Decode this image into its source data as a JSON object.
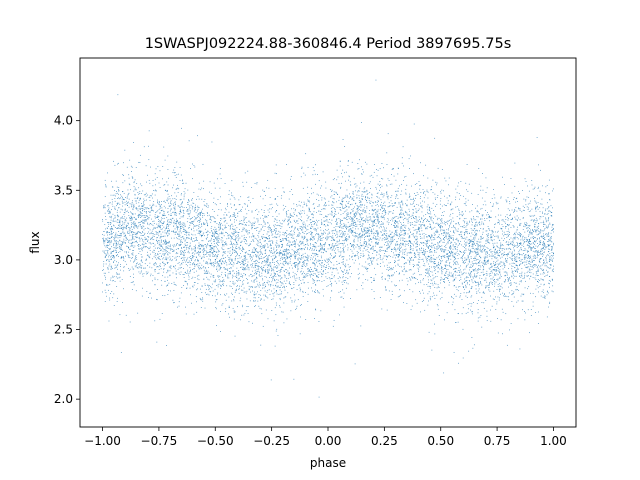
{
  "chart_data": {
    "type": "scatter",
    "title": "1SWASPJ092224.88-360846.4 Period 3897695.75s",
    "xlabel": "phase",
    "ylabel": "flux",
    "xlim": [
      -1.1,
      1.1
    ],
    "ylim": [
      1.8,
      4.45
    ],
    "x_ticks": [
      -1.0,
      -0.75,
      -0.5,
      -0.25,
      0.0,
      0.25,
      0.5,
      0.75,
      1.0
    ],
    "x_tick_labels": [
      "−1.00",
      "−0.75",
      "−0.50",
      "−0.25",
      "0.00",
      "0.25",
      "0.50",
      "0.75",
      "1.00"
    ],
    "y_ticks": [
      2.0,
      2.5,
      3.0,
      3.5,
      4.0
    ],
    "y_tick_labels": [
      "2.0",
      "2.5",
      "3.0",
      "3.5",
      "4.0"
    ],
    "grid": false,
    "marker_color": "#1f77b4",
    "phase_range": [
      -1.0,
      1.0
    ],
    "flux_profile": {
      "phase": [
        0.0,
        0.1,
        0.2,
        0.3,
        0.4,
        0.5,
        0.6,
        0.7,
        0.8,
        0.9,
        1.0
      ],
      "median_flux": [
        3.1,
        3.25,
        3.22,
        3.2,
        3.15,
        3.08,
        3.05,
        3.02,
        3.05,
        3.1,
        3.1
      ]
    },
    "flux_scatter_sigma": 0.2
  }
}
